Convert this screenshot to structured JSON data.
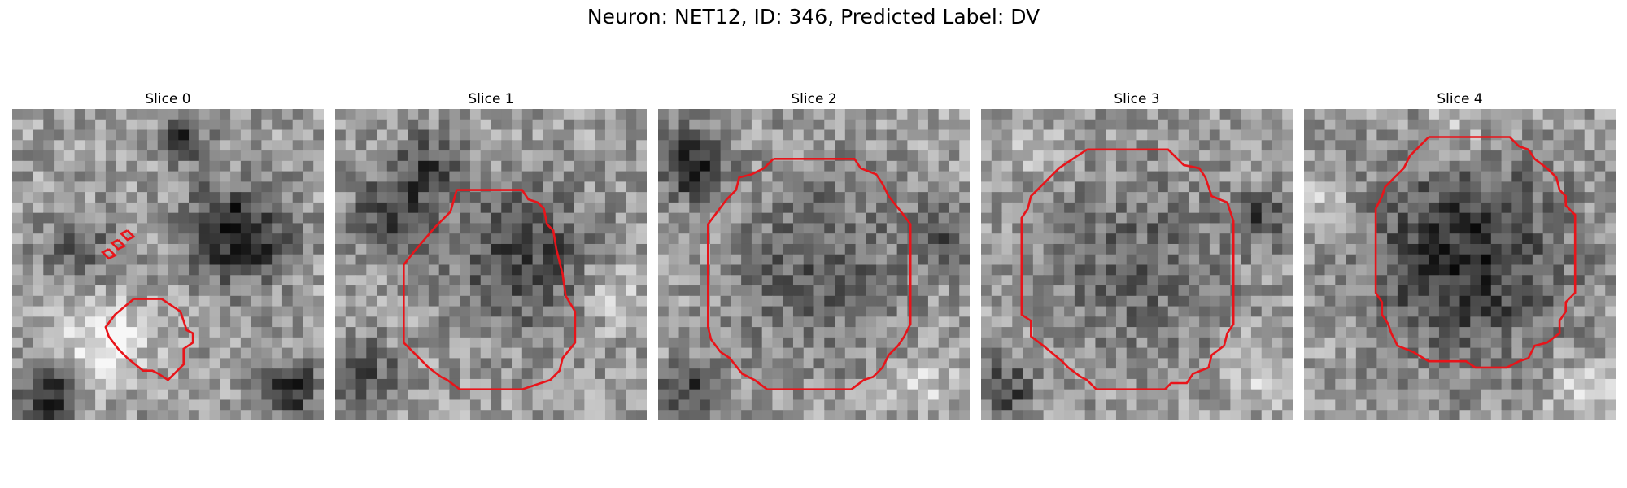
{
  "figure": {
    "title": "Neuron: NET12, ID: 346, Predicted Label: DV"
  },
  "panels": [
    {
      "title": "Slice 0",
      "image": {
        "type": "grayscale-em-patch",
        "grid": 30,
        "seed": 11,
        "blobs": [
          [
            0.72,
            0.4,
            0.17,
            -0.55
          ],
          [
            0.3,
            0.75,
            0.14,
            0.35
          ],
          [
            0.12,
            0.92,
            0.1,
            -0.5
          ],
          [
            0.2,
            0.45,
            0.12,
            -0.3
          ],
          [
            0.55,
            0.1,
            0.08,
            -0.4
          ],
          [
            0.9,
            0.9,
            0.1,
            -0.45
          ]
        ]
      },
      "contour_color": "#e8141a",
      "contours": [
        [
          [
            0.39,
            0.61
          ],
          [
            0.48,
            0.61
          ],
          [
            0.54,
            0.65
          ],
          [
            0.56,
            0.71
          ],
          [
            0.58,
            0.72
          ],
          [
            0.58,
            0.75
          ],
          [
            0.55,
            0.77
          ],
          [
            0.55,
            0.82
          ],
          [
            0.5,
            0.87
          ],
          [
            0.47,
            0.85
          ],
          [
            0.45,
            0.84
          ],
          [
            0.42,
            0.84
          ],
          [
            0.37,
            0.8
          ],
          [
            0.34,
            0.77
          ],
          [
            0.31,
            0.73
          ],
          [
            0.3,
            0.7
          ],
          [
            0.33,
            0.66
          ],
          [
            0.39,
            0.61
          ]
        ],
        [
          [
            0.31,
            0.45
          ],
          [
            0.33,
            0.47
          ],
          [
            0.31,
            0.48
          ],
          [
            0.29,
            0.46
          ],
          [
            0.31,
            0.45
          ]
        ],
        [
          [
            0.34,
            0.42
          ],
          [
            0.36,
            0.44
          ],
          [
            0.34,
            0.45
          ],
          [
            0.32,
            0.43
          ],
          [
            0.34,
            0.42
          ]
        ],
        [
          [
            0.37,
            0.39
          ],
          [
            0.39,
            0.41
          ],
          [
            0.37,
            0.42
          ],
          [
            0.35,
            0.4
          ],
          [
            0.37,
            0.39
          ]
        ]
      ]
    },
    {
      "title": "Slice 1",
      "image": {
        "type": "grayscale-em-patch",
        "grid": 30,
        "seed": 23,
        "blobs": [
          [
            0.6,
            0.48,
            0.25,
            -0.35
          ],
          [
            0.18,
            0.33,
            0.14,
            -0.35
          ],
          [
            0.3,
            0.18,
            0.12,
            -0.3
          ],
          [
            0.88,
            0.6,
            0.1,
            0.25
          ],
          [
            0.1,
            0.85,
            0.12,
            -0.3
          ]
        ]
      },
      "contour_color": "#e8141a",
      "contours": [
        [
          [
            0.39,
            0.26
          ],
          [
            0.6,
            0.26
          ],
          [
            0.62,
            0.29
          ],
          [
            0.65,
            0.3
          ],
          [
            0.67,
            0.32
          ],
          [
            0.68,
            0.37
          ],
          [
            0.7,
            0.39
          ],
          [
            0.71,
            0.45
          ],
          [
            0.73,
            0.53
          ],
          [
            0.74,
            0.6
          ],
          [
            0.77,
            0.65
          ],
          [
            0.77,
            0.75
          ],
          [
            0.73,
            0.8
          ],
          [
            0.72,
            0.84
          ],
          [
            0.69,
            0.87
          ],
          [
            0.66,
            0.88
          ],
          [
            0.6,
            0.9
          ],
          [
            0.4,
            0.9
          ],
          [
            0.36,
            0.87
          ],
          [
            0.34,
            0.86
          ],
          [
            0.3,
            0.83
          ],
          [
            0.27,
            0.8
          ],
          [
            0.22,
            0.75
          ],
          [
            0.22,
            0.5
          ],
          [
            0.26,
            0.45
          ],
          [
            0.32,
            0.38
          ],
          [
            0.37,
            0.33
          ],
          [
            0.39,
            0.26
          ]
        ]
      ]
    },
    {
      "title": "Slice 2",
      "image": {
        "type": "grayscale-em-patch",
        "grid": 30,
        "seed": 37,
        "blobs": [
          [
            0.52,
            0.5,
            0.32,
            -0.25
          ],
          [
            0.1,
            0.18,
            0.12,
            -0.45
          ],
          [
            0.92,
            0.4,
            0.1,
            -0.3
          ],
          [
            0.1,
            0.9,
            0.1,
            -0.35
          ],
          [
            0.85,
            0.88,
            0.1,
            0.2
          ]
        ]
      },
      "contour_color": "#e8141a",
      "contours": [
        [
          [
            0.37,
            0.16
          ],
          [
            0.63,
            0.16
          ],
          [
            0.65,
            0.19
          ],
          [
            0.7,
            0.21
          ],
          [
            0.72,
            0.24
          ],
          [
            0.74,
            0.28
          ],
          [
            0.78,
            0.33
          ],
          [
            0.81,
            0.37
          ],
          [
            0.81,
            0.69
          ],
          [
            0.79,
            0.73
          ],
          [
            0.77,
            0.76
          ],
          [
            0.74,
            0.79
          ],
          [
            0.72,
            0.83
          ],
          [
            0.69,
            0.86
          ],
          [
            0.66,
            0.87
          ],
          [
            0.62,
            0.9
          ],
          [
            0.35,
            0.9
          ],
          [
            0.31,
            0.87
          ],
          [
            0.27,
            0.85
          ],
          [
            0.23,
            0.8
          ],
          [
            0.2,
            0.78
          ],
          [
            0.17,
            0.74
          ],
          [
            0.16,
            0.7
          ],
          [
            0.16,
            0.37
          ],
          [
            0.19,
            0.33
          ],
          [
            0.22,
            0.29
          ],
          [
            0.25,
            0.26
          ],
          [
            0.26,
            0.22
          ],
          [
            0.3,
            0.21
          ],
          [
            0.34,
            0.19
          ],
          [
            0.37,
            0.16
          ]
        ]
      ]
    },
    {
      "title": "Slice 3",
      "image": {
        "type": "grayscale-em-patch",
        "grid": 30,
        "seed": 53,
        "blobs": [
          [
            0.5,
            0.5,
            0.33,
            -0.22
          ],
          [
            0.9,
            0.35,
            0.1,
            -0.3
          ],
          [
            0.08,
            0.9,
            0.1,
            -0.35
          ],
          [
            0.9,
            0.85,
            0.12,
            0.2
          ],
          [
            0.15,
            0.12,
            0.1,
            0.15
          ]
        ]
      },
      "contour_color": "#e8141a",
      "contours": [
        [
          [
            0.34,
            0.13
          ],
          [
            0.6,
            0.13
          ],
          [
            0.62,
            0.15
          ],
          [
            0.65,
            0.18
          ],
          [
            0.7,
            0.19
          ],
          [
            0.72,
            0.22
          ],
          [
            0.74,
            0.28
          ],
          [
            0.79,
            0.3
          ],
          [
            0.81,
            0.36
          ],
          [
            0.81,
            0.69
          ],
          [
            0.79,
            0.72
          ],
          [
            0.78,
            0.76
          ],
          [
            0.74,
            0.79
          ],
          [
            0.73,
            0.83
          ],
          [
            0.68,
            0.85
          ],
          [
            0.66,
            0.88
          ],
          [
            0.61,
            0.88
          ],
          [
            0.59,
            0.9
          ],
          [
            0.37,
            0.9
          ],
          [
            0.34,
            0.87
          ],
          [
            0.32,
            0.86
          ],
          [
            0.28,
            0.83
          ],
          [
            0.26,
            0.81
          ],
          [
            0.2,
            0.76
          ],
          [
            0.16,
            0.73
          ],
          [
            0.16,
            0.68
          ],
          [
            0.13,
            0.66
          ],
          [
            0.13,
            0.35
          ],
          [
            0.15,
            0.32
          ],
          [
            0.16,
            0.28
          ],
          [
            0.19,
            0.25
          ],
          [
            0.22,
            0.22
          ],
          [
            0.25,
            0.19
          ],
          [
            0.28,
            0.17
          ],
          [
            0.31,
            0.15
          ],
          [
            0.34,
            0.13
          ]
        ]
      ]
    },
    {
      "title": "Slice 4",
      "image": {
        "type": "grayscale-em-patch",
        "grid": 30,
        "seed": 71,
        "blobs": [
          [
            0.52,
            0.48,
            0.34,
            -0.45
          ],
          [
            0.5,
            0.05,
            0.12,
            0.15
          ],
          [
            0.9,
            0.9,
            0.12,
            0.2
          ],
          [
            0.05,
            0.3,
            0.1,
            0.15
          ]
        ]
      },
      "contour_color": "#e8141a",
      "contours": [
        [
          [
            0.4,
            0.09
          ],
          [
            0.66,
            0.09
          ],
          [
            0.69,
            0.12
          ],
          [
            0.72,
            0.13
          ],
          [
            0.74,
            0.16
          ],
          [
            0.78,
            0.19
          ],
          [
            0.81,
            0.22
          ],
          [
            0.82,
            0.26
          ],
          [
            0.84,
            0.28
          ],
          [
            0.84,
            0.31
          ],
          [
            0.87,
            0.34
          ],
          [
            0.87,
            0.59
          ],
          [
            0.84,
            0.62
          ],
          [
            0.84,
            0.65
          ],
          [
            0.82,
            0.68
          ],
          [
            0.82,
            0.72
          ],
          [
            0.78,
            0.75
          ],
          [
            0.74,
            0.76
          ],
          [
            0.72,
            0.8
          ],
          [
            0.69,
            0.81
          ],
          [
            0.65,
            0.83
          ],
          [
            0.55,
            0.83
          ],
          [
            0.52,
            0.81
          ],
          [
            0.4,
            0.81
          ],
          [
            0.35,
            0.78
          ],
          [
            0.3,
            0.76
          ],
          [
            0.28,
            0.72
          ],
          [
            0.27,
            0.69
          ],
          [
            0.25,
            0.66
          ],
          [
            0.25,
            0.62
          ],
          [
            0.23,
            0.59
          ],
          [
            0.23,
            0.32
          ],
          [
            0.25,
            0.28
          ],
          [
            0.26,
            0.25
          ],
          [
            0.29,
            0.22
          ],
          [
            0.32,
            0.19
          ],
          [
            0.34,
            0.15
          ],
          [
            0.37,
            0.12
          ],
          [
            0.4,
            0.09
          ]
        ]
      ]
    }
  ]
}
